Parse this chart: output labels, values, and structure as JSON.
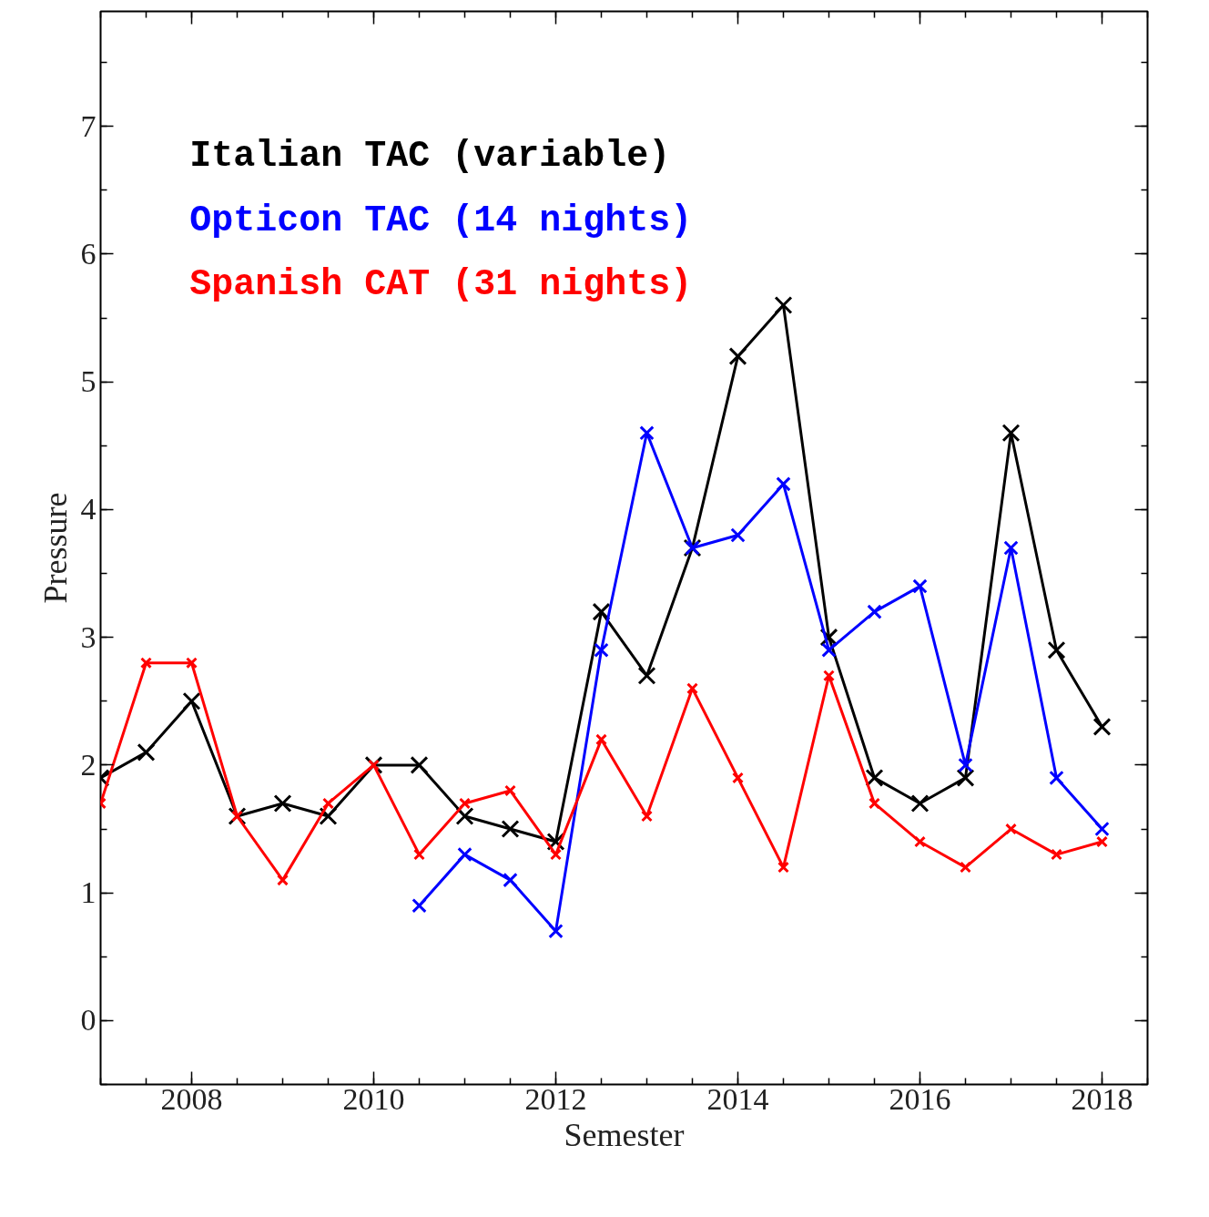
{
  "chart_data": {
    "type": "line",
    "xlabel": "Semester",
    "ylabel": "Pressure",
    "xlim": [
      2007.0,
      2018.5
    ],
    "ylim": [
      -0.5,
      7.9
    ],
    "xticks": [
      2008,
      2010,
      2012,
      2014,
      2016,
      2018
    ],
    "yticks": [
      0,
      1,
      2,
      3,
      4,
      5,
      6,
      7
    ],
    "grid": false,
    "legend": "top left",
    "marker": "cross",
    "line_style": "solid",
    "series": [
      {
        "name": "Italian TAC (variable)",
        "color": "#000000",
        "x": [
          2007.0,
          2007.5,
          2008.0,
          2008.5,
          2009.0,
          2009.5,
          2010.0,
          2010.5,
          2011.0,
          2011.5,
          2012.0,
          2012.5,
          2013.0,
          2013.5,
          2014.0,
          2014.5,
          2015.0,
          2015.5,
          2016.0,
          2016.5,
          2017.0,
          2017.5,
          2018.0
        ],
        "values": [
          1.9,
          2.1,
          2.5,
          1.6,
          1.7,
          1.6,
          2.0,
          2.0,
          1.6,
          1.5,
          1.4,
          3.2,
          2.7,
          3.7,
          5.2,
          5.6,
          3.0,
          1.9,
          1.7,
          1.9,
          4.6,
          2.9,
          2.3
        ]
      },
      {
        "name": "Opticon TAC (14 nights)",
        "color": "#0000ff",
        "x": [
          2010.5,
          2011.0,
          2011.5,
          2012.0,
          2012.5,
          2013.0,
          2013.5,
          2014.0,
          2014.5,
          2015.0,
          2015.5,
          2016.0,
          2016.5,
          2017.0,
          2017.5,
          2018.0
        ],
        "values": [
          0.9,
          1.3,
          1.1,
          0.7,
          2.9,
          4.6,
          3.7,
          3.8,
          4.2,
          2.9,
          3.2,
          3.4,
          2.0,
          3.7,
          1.9,
          1.5
        ]
      },
      {
        "name": "Spanish CAT (31 nights)",
        "color": "#ff0000",
        "x": [
          2007.0,
          2007.5,
          2008.0,
          2008.5,
          2009.0,
          2009.5,
          2010.0,
          2010.5,
          2011.0,
          2011.5,
          2012.0,
          2012.5,
          2013.0,
          2013.5,
          2014.0,
          2014.5,
          2015.0,
          2015.5,
          2016.0,
          2016.5,
          2017.0,
          2017.5,
          2018.0
        ],
        "values": [
          1.7,
          2.8,
          2.8,
          1.6,
          1.1,
          1.7,
          2.0,
          1.3,
          1.7,
          1.8,
          1.3,
          2.2,
          1.6,
          2.6,
          1.9,
          1.2,
          2.7,
          1.7,
          1.4,
          1.2,
          1.5,
          1.3,
          1.4
        ]
      }
    ]
  }
}
